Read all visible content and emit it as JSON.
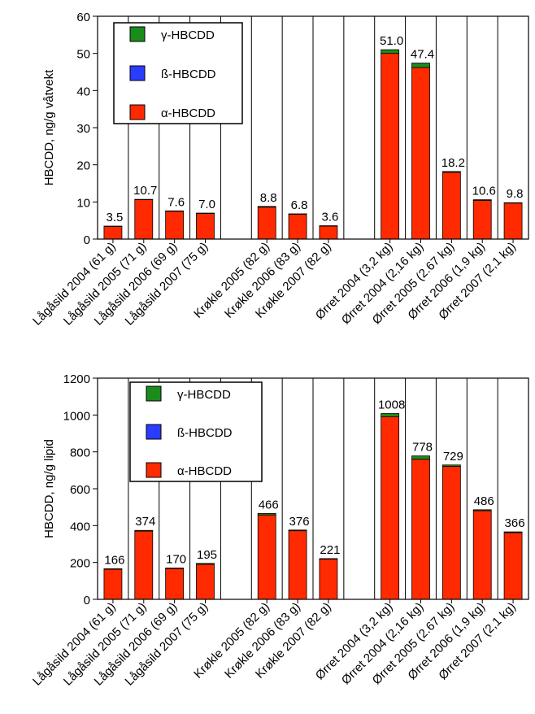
{
  "chart_data": [
    {
      "type": "stacked-bar",
      "y_label": "HBCDD, ng/g våtvekt",
      "categories": [
        "Lågåsild 2004 (61 g)",
        "Lågåsild 2005 (71 g)",
        "Lågåsild 2006 (69 g)",
        "Lågåsild 2007 (75 g)",
        null,
        "Krøkle 2005 (82 g)",
        "Krøkle 2006 (83 g)",
        "Krøkle 2007 (82 g)",
        null,
        "Ørret 2004 (3,2 kg)",
        "Ørret 2004 (2,16 kg)",
        "Ørret 2005 (2.67 kg)",
        "Ørret 2006 (1,9 kg)",
        "Ørret 2007 (2,1 kg)"
      ],
      "series": [
        {
          "name": "α-HBCDD",
          "color": "#ff2a00",
          "values": [
            3.4,
            10.6,
            7.5,
            6.9,
            null,
            8.6,
            6.7,
            3.5,
            null,
            50.0,
            46.2,
            18.0,
            10.4,
            9.7
          ]
        },
        {
          "name": "ß-HBCDD",
          "color": "#2a3cff",
          "values": [
            0,
            0,
            0,
            0,
            null,
            0,
            0,
            0,
            null,
            0,
            0,
            0,
            0,
            0
          ]
        },
        {
          "name": "γ-HBCDD",
          "color": "#1a8c1a",
          "values": [
            0.1,
            0.1,
            0.1,
            0.1,
            null,
            0.2,
            0.1,
            0.1,
            null,
            1.0,
            1.2,
            0.2,
            0.2,
            0.1
          ]
        }
      ],
      "totals": [
        3.5,
        10.7,
        7.6,
        7.0,
        null,
        8.8,
        6.8,
        3.6,
        null,
        51.0,
        47.4,
        18.2,
        10.6,
        9.8
      ],
      "total_labels": [
        "3.5",
        "10.7",
        "7.6",
        "7.0",
        null,
        "8.8",
        "6.8",
        "3.6",
        null,
        "51.0",
        "47.4",
        "18.2",
        "10.6",
        "9.8"
      ],
      "ylim": [
        0,
        60
      ],
      "yticks": [
        0,
        10,
        20,
        30,
        40,
        50,
        60
      ],
      "category_dividers": true
    },
    {
      "type": "stacked-bar",
      "y_label": "HBCDD, ng/g lipid",
      "categories": [
        "Lågåsild 2004 (61 g)",
        "Lågåsild 2005 (71 g)",
        "Lågåsild 2006 (69 g)",
        "Lågåsild 2007 (75 g)",
        null,
        "Krøkle 2005 (82 g)",
        "Krøkle 2006 (83 g)",
        "Krøkle 2007 (82 g)",
        null,
        "Ørret 2004 (3,2 kg)",
        "Ørret 2004 (2,16 kg)",
        "Ørret 2005 (2.67 kg)",
        "Ørret 2006 (1,9 kg)",
        "Ørret 2007 (2,1 kg)"
      ],
      "series": [
        {
          "name": "α-HBCDD",
          "color": "#ff2a00",
          "values": [
            163,
            370,
            167,
            190,
            null,
            458,
            372,
            218,
            null,
            990,
            760,
            721,
            481,
            362
          ]
        },
        {
          "name": "ß-HBCDD",
          "color": "#2a3cff",
          "values": [
            0,
            0,
            0,
            0,
            null,
            0,
            0,
            0,
            null,
            0,
            0,
            0,
            0,
            0
          ]
        },
        {
          "name": "γ-HBCDD",
          "color": "#1a8c1a",
          "values": [
            3,
            4,
            3,
            5,
            null,
            8,
            4,
            3,
            null,
            18,
            18,
            8,
            5,
            4
          ]
        }
      ],
      "totals": [
        166,
        374,
        170,
        195,
        null,
        466,
        376,
        221,
        null,
        1008,
        778,
        729,
        486,
        366
      ],
      "total_labels": [
        "166",
        "374",
        "170",
        "195",
        null,
        "466",
        "376",
        "221",
        null,
        "1008",
        "778",
        "729",
        "486",
        "366"
      ],
      "ylim": [
        0,
        1200
      ],
      "yticks": [
        0,
        200,
        400,
        600,
        800,
        1000,
        1200
      ],
      "category_dividers": true
    }
  ]
}
